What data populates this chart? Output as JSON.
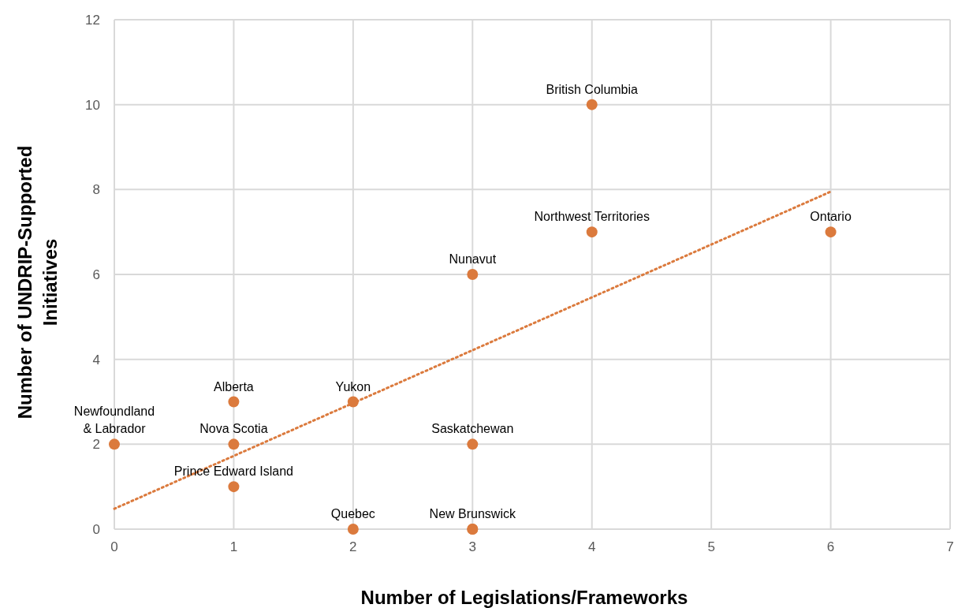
{
  "chart_data": {
    "type": "scatter",
    "xlabel": "Number of Legislations/Frameworks",
    "ylabel": "Number of UNDRIP-Supported Initiatives",
    "series": [
      {
        "color": "#db7a3d",
        "x": [
          0,
          1,
          1,
          1,
          2,
          2,
          3,
          3,
          3,
          3,
          4,
          4,
          6
        ],
        "values": [
          2,
          3,
          2,
          1,
          3,
          0,
          6,
          2,
          0,
          0,
          10,
          7,
          7
        ]
      },
      {
        "type": "line",
        "color": "#db7a3d",
        "line_style": "dotted",
        "marker": "none",
        "x": [
          0,
          6
        ],
        "values": [
          0.48,
          7.95
        ]
      }
    ],
    "xlim": [
      0,
      7
    ],
    "xticks": [
      0,
      1,
      2,
      3,
      4,
      5,
      6,
      7
    ],
    "ylim": [
      0,
      12
    ],
    "yticks": [
      0,
      2,
      4,
      6,
      8,
      10,
      12
    ],
    "grid": true,
    "marker": "circle",
    "annotations": [
      {
        "text": "Newfoundland\n& Labrador",
        "x": 0,
        "y": 2
      },
      {
        "text": "Alberta",
        "x": 1,
        "y": 3
      },
      {
        "text": "Nova Scotia",
        "x": 1,
        "y": 2
      },
      {
        "text": "Prince Edward Island",
        "x": 1,
        "y": 1
      },
      {
        "text": "Yukon",
        "x": 2,
        "y": 3
      },
      {
        "text": "Quebec",
        "x": 2,
        "y": 0
      },
      {
        "text": "Nunavut",
        "x": 3,
        "y": 6
      },
      {
        "text": "Saskatchewan",
        "x": 3,
        "y": 2
      },
      {
        "text": "New Brunswick",
        "x": 3,
        "y": 0
      },
      {
        "text": "British Columbia",
        "x": 4,
        "y": 10
      },
      {
        "text": "Northwest Territories",
        "x": 4,
        "y": 7
      },
      {
        "text": "Ontario",
        "x": 6,
        "y": 7
      }
    ]
  }
}
